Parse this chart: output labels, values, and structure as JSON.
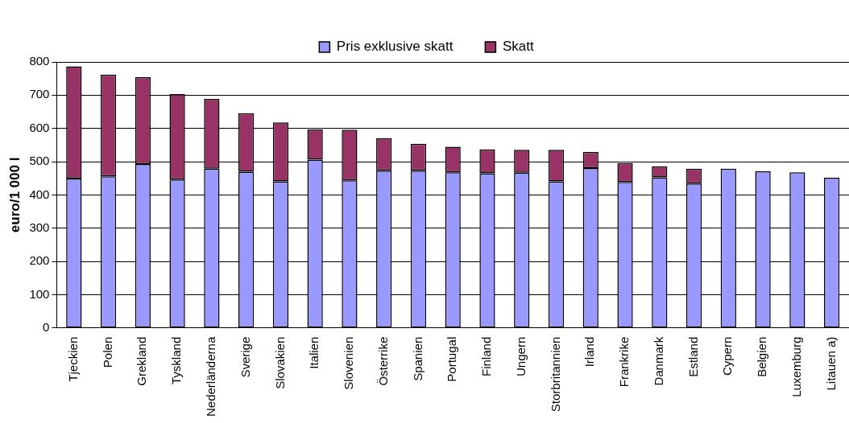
{
  "chart_data": {
    "type": "bar",
    "stacked": true,
    "ylabel": "euro/1 000 l",
    "categories": [
      "Tjeckien",
      "Polen",
      "Grekland",
      "Tyskland",
      "Nederländerna",
      "Sverige",
      "Slovakien",
      "Italien",
      "Slovenien",
      "Österrike",
      "Spanien",
      "Portugal",
      "Finland",
      "Ungern",
      "Storbritannien",
      "Irland",
      "Frankrike",
      "Danmark",
      "Estland",
      "Cypern",
      "Belgien",
      "Luxemburg",
      "Litauen a)"
    ],
    "series": [
      {
        "name": "Pris exklusive skatt",
        "color": "#9999ff",
        "values": [
          449,
          456,
          493,
          446,
          479,
          470,
          441,
          506,
          444,
          473,
          473,
          468,
          465,
          467,
          441,
          481,
          439,
          453,
          434,
          479,
          471,
          468,
          452
        ]
      },
      {
        "name": "Skatt",
        "color": "#993366",
        "values": [
          338,
          306,
          261,
          257,
          210,
          176,
          177,
          91,
          152,
          98,
          81,
          77,
          72,
          69,
          95,
          48,
          57,
          33,
          45,
          null,
          null,
          null,
          null
        ]
      }
    ],
    "ylim": [
      0,
      800
    ],
    "yticks": [
      0,
      100,
      200,
      300,
      400,
      500,
      600,
      700,
      800
    ],
    "grid": "y",
    "legend": "top"
  }
}
